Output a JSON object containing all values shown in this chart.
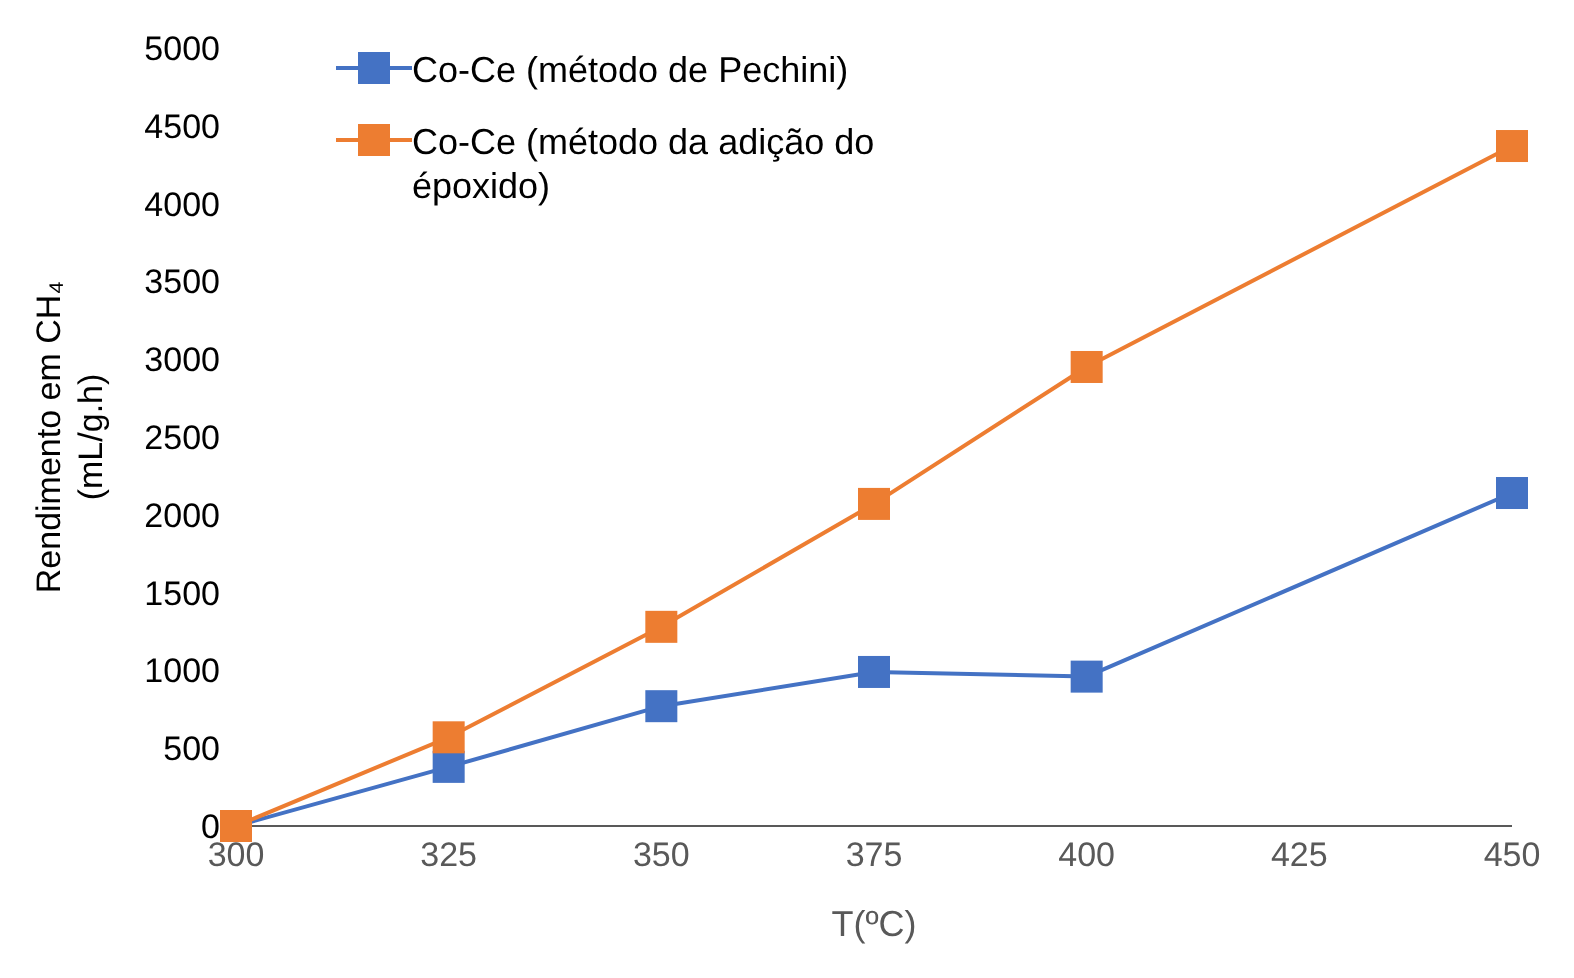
{
  "chart_data": {
    "type": "line",
    "xlabel": "T(ºC)",
    "ylabel": "Rendimento em CH₄ (mL/g.h)",
    "x": [
      300,
      325,
      350,
      375,
      400,
      450
    ],
    "series": [
      {
        "name": "Co-Ce (método de Pechini)",
        "color": "#4472c4",
        "values": [
          0,
          380,
          770,
          990,
          960,
          2140
        ]
      },
      {
        "name": "Co-Ce (método da adição do époxido)",
        "color": "#ed7d31",
        "values": [
          0,
          570,
          1280,
          2070,
          2950,
          4370
        ]
      }
    ],
    "xlim": [
      300,
      450
    ],
    "xticks": [
      300,
      325,
      350,
      375,
      400,
      425,
      450
    ],
    "ylim": [
      0,
      5000
    ],
    "yticks": [
      0,
      500,
      1000,
      1500,
      2000,
      2500,
      3000,
      3500,
      4000,
      4500,
      5000
    ],
    "grid": false,
    "legend": "top left",
    "marker": "square",
    "line_style": "solid"
  }
}
